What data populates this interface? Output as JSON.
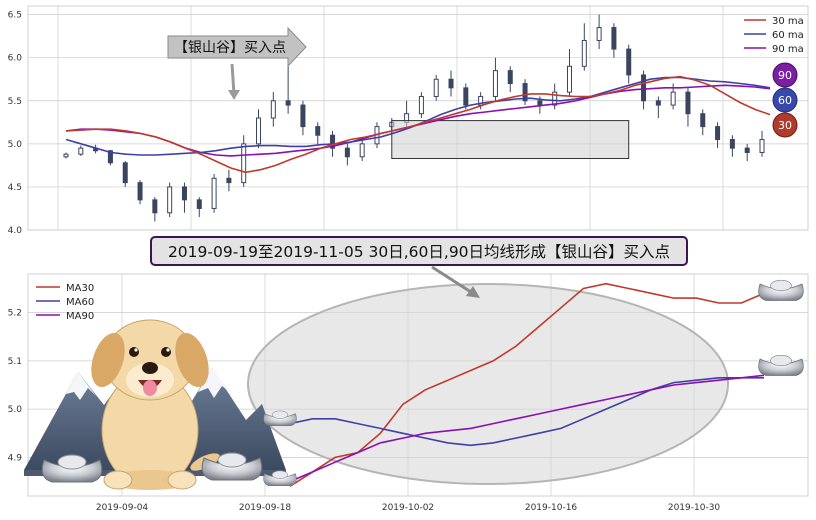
{
  "caption": "2019-09-19至2019-11-05 30日,60日,90日均线形成【银山谷】买入点",
  "callout_label": "【银山谷】买入点",
  "end_badges": [
    "90",
    "60",
    "30"
  ],
  "colors": {
    "ma30": "#c0392b",
    "ma60": "#3f3fa8",
    "ma90": "#8a0fb0",
    "candle": "#3a4560",
    "badge90": "#7b1fa2",
    "badge60": "#3949ab",
    "badge30": "#b03a2e",
    "grid": "#cccccc"
  },
  "decorations": [
    "dog-illustration",
    "mountain-illustration",
    "silver-ingot-icon"
  ],
  "chart_data": [
    {
      "type": "candlestick",
      "ylim": [
        4.0,
        6.6
      ],
      "yticks": [
        "4.0",
        "4.5",
        "5.0",
        "5.5",
        "6.0",
        "6.5"
      ],
      "legend": [
        "30 ma",
        "60 ma",
        "90 ma"
      ],
      "legend_position": "top-right",
      "grid": true,
      "ma30": [
        5.15,
        5.16,
        5.17,
        5.17,
        5.15,
        5.12,
        5.08,
        5.02,
        4.95,
        4.88,
        4.8,
        4.72,
        4.67,
        4.7,
        4.75,
        4.82,
        4.88,
        4.95,
        5.0,
        5.05,
        5.08,
        5.12,
        5.16,
        5.2,
        5.25,
        5.3,
        5.35,
        5.4,
        5.46,
        5.51,
        5.55,
        5.58,
        5.58,
        5.56,
        5.55,
        5.55,
        5.58,
        5.62,
        5.68,
        5.72,
        5.76,
        5.78,
        5.74,
        5.68,
        5.58,
        5.48,
        5.4,
        5.34
      ],
      "ma60": [
        5.05,
        5.0,
        4.95,
        4.9,
        4.88,
        4.87,
        4.87,
        4.88,
        4.89,
        4.9,
        4.92,
        4.95,
        4.97,
        4.98,
        4.98,
        4.97,
        4.97,
        4.99,
        5.0,
        5.02,
        5.05,
        5.08,
        5.13,
        5.19,
        5.26,
        5.34,
        5.4,
        5.45,
        5.48,
        5.5,
        5.52,
        5.53,
        5.51,
        5.5,
        5.52,
        5.55,
        5.6,
        5.65,
        5.7,
        5.75,
        5.77,
        5.77,
        5.75,
        5.73,
        5.72,
        5.7,
        5.68,
        5.65
      ],
      "ma90": [
        5.15,
        5.17,
        5.17,
        5.16,
        5.14,
        5.12,
        5.08,
        5.02,
        4.95,
        4.9,
        4.87,
        4.86,
        4.87,
        4.88,
        4.89,
        4.91,
        4.93,
        4.95,
        4.98,
        5.02,
        5.07,
        5.12,
        5.16,
        5.2,
        5.24,
        5.28,
        5.32,
        5.35,
        5.37,
        5.39,
        5.41,
        5.43,
        5.45,
        5.47,
        5.5,
        5.54,
        5.58,
        5.61,
        5.63,
        5.64,
        5.65,
        5.65,
        5.66,
        5.67,
        5.68,
        5.67,
        5.66,
        5.64
      ],
      "ohlc": [
        [
          4.85,
          4.88,
          4.9,
          4.83
        ],
        [
          4.88,
          4.95,
          4.98,
          4.86
        ],
        [
          4.95,
          4.92,
          4.99,
          4.89
        ],
        [
          4.92,
          4.78,
          4.93,
          4.75
        ],
        [
          4.78,
          4.55,
          4.8,
          4.5
        ],
        [
          4.55,
          4.35,
          4.58,
          4.3
        ],
        [
          4.35,
          4.2,
          4.38,
          4.1
        ],
        [
          4.2,
          4.5,
          4.55,
          4.15
        ],
        [
          4.5,
          4.35,
          4.55,
          4.2
        ],
        [
          4.35,
          4.25,
          4.38,
          4.15
        ],
        [
          4.25,
          4.6,
          4.65,
          4.2
        ],
        [
          4.6,
          4.55,
          4.7,
          4.45
        ],
        [
          4.55,
          5.0,
          5.1,
          4.5
        ],
        [
          5.0,
          5.3,
          5.4,
          4.95
        ],
        [
          5.3,
          5.5,
          5.6,
          5.2
        ],
        [
          5.5,
          5.45,
          5.9,
          5.35
        ],
        [
          5.45,
          5.2,
          5.5,
          5.1
        ],
        [
          5.2,
          5.1,
          5.25,
          5.0
        ],
        [
          5.1,
          4.95,
          5.15,
          4.85
        ],
        [
          4.95,
          4.85,
          5.0,
          4.75
        ],
        [
          4.85,
          5.0,
          5.05,
          4.8
        ],
        [
          5.0,
          5.2,
          5.25,
          4.95
        ],
        [
          5.2,
          5.25,
          5.3,
          5.1
        ],
        [
          5.25,
          5.35,
          5.5,
          5.2
        ],
        [
          5.35,
          5.55,
          5.6,
          5.3
        ],
        [
          5.55,
          5.75,
          5.8,
          5.5
        ],
        [
          5.75,
          5.65,
          5.85,
          5.55
        ],
        [
          5.65,
          5.45,
          5.7,
          5.4
        ],
        [
          5.45,
          5.55,
          5.6,
          5.4
        ],
        [
          5.55,
          5.85,
          6.0,
          5.5
        ],
        [
          5.85,
          5.7,
          5.9,
          5.6
        ],
        [
          5.7,
          5.5,
          5.75,
          5.45
        ],
        [
          5.5,
          5.45,
          5.55,
          5.35
        ],
        [
          5.45,
          5.6,
          5.7,
          5.4
        ],
        [
          5.6,
          5.9,
          6.1,
          5.55
        ],
        [
          5.9,
          6.2,
          6.4,
          5.85
        ],
        [
          6.2,
          6.35,
          6.5,
          6.1
        ],
        [
          6.35,
          6.1,
          6.4,
          6.0
        ],
        [
          6.1,
          5.8,
          6.15,
          5.7
        ],
        [
          5.8,
          5.5,
          5.85,
          5.4
        ],
        [
          5.5,
          5.45,
          5.55,
          5.3
        ],
        [
          5.45,
          5.6,
          5.7,
          5.4
        ],
        [
          5.6,
          5.35,
          5.65,
          5.2
        ],
        [
          5.35,
          5.2,
          5.4,
          5.1
        ],
        [
          5.2,
          5.05,
          5.25,
          4.95
        ],
        [
          5.05,
          4.95,
          5.1,
          4.85
        ],
        [
          4.95,
          4.9,
          5.0,
          4.8
        ],
        [
          4.9,
          5.05,
          5.15,
          4.85
        ]
      ],
      "zoom_box": {
        "x": [
          22,
          38
        ],
        "y": [
          4.83,
          5.27
        ]
      }
    },
    {
      "type": "line",
      "xticks": [
        "2019-09-04",
        "2019-09-18",
        "2019-10-02",
        "2019-10-16",
        "2019-10-30"
      ],
      "yticks": [
        "4.9",
        "5.0",
        "5.1",
        "5.2"
      ],
      "ylim": [
        4.82,
        5.28
      ],
      "legend_position": "top-left",
      "grid": true,
      "series": [
        {
          "name": "MA30",
          "values": [
            4.84,
            4.87,
            4.9,
            4.91,
            4.95,
            5.01,
            5.04,
            5.06,
            5.08,
            5.1,
            5.13,
            5.17,
            5.21,
            5.25,
            5.26,
            5.25,
            5.24,
            5.23,
            5.23,
            5.22,
            5.22,
            5.24
          ]
        },
        {
          "name": "MA60",
          "values": [
            4.97,
            4.98,
            4.98,
            4.97,
            4.96,
            4.95,
            4.94,
            4.93,
            4.925,
            4.93,
            4.94,
            4.95,
            4.96,
            4.98,
            5.0,
            5.02,
            5.04,
            5.055,
            5.06,
            5.065,
            5.065,
            5.065
          ]
        },
        {
          "name": "MA90",
          "values": [
            4.85,
            4.87,
            4.89,
            4.91,
            4.93,
            4.94,
            4.95,
            4.955,
            4.96,
            4.97,
            4.98,
            4.99,
            5.0,
            5.01,
            5.02,
            5.03,
            5.04,
            5.05,
            5.055,
            5.06,
            5.065,
            5.07
          ]
        }
      ]
    }
  ]
}
